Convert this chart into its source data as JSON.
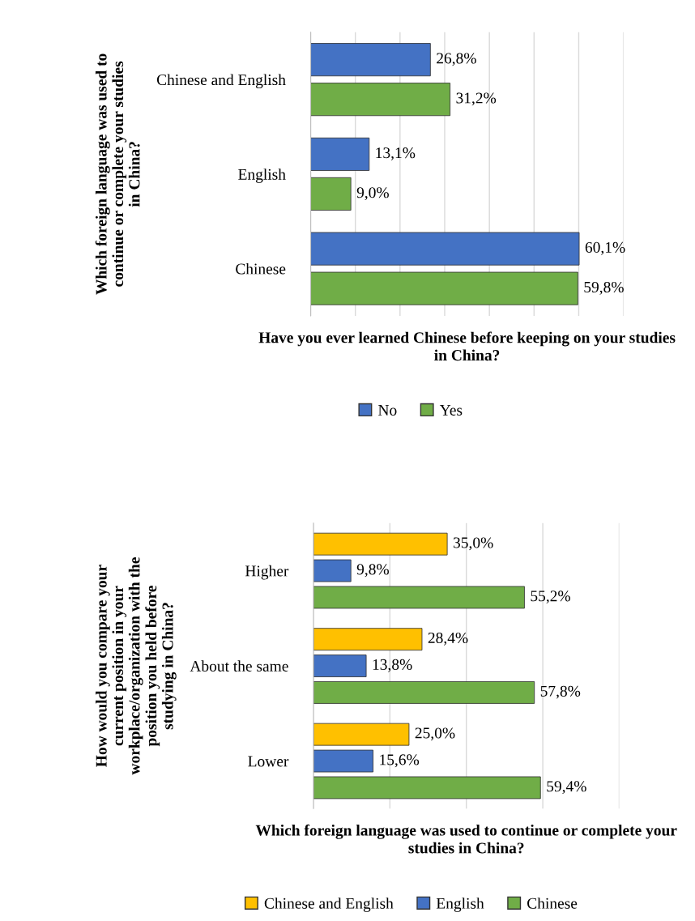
{
  "chart_data": [
    {
      "type": "bar",
      "orientation": "horizontal",
      "xlabel": "Have you ever learned Chinese before keeping on your studies in China?",
      "ylabel": "Which foreign language was used to continue or complete your studies in China?",
      "categories": [
        "Chinese and English",
        "English",
        "Chinese"
      ],
      "series": [
        {
          "name": "No",
          "color": "#4472c4",
          "values": [
            26.8,
            13.1,
            60.1
          ],
          "value_labels": [
            "26,8%",
            "13,1%",
            "60,1%"
          ]
        },
        {
          "name": "Yes",
          "color": "#70ad47",
          "values": [
            31.2,
            9.0,
            59.8
          ],
          "value_labels": [
            "31,2%",
            "9,0%",
            "59,8%"
          ]
        }
      ],
      "xlim": [
        0,
        70
      ],
      "xticks": [
        {
          "value": 0,
          "label": null
        },
        {
          "value": 10,
          "label": null
        },
        {
          "value": 20,
          "label": null
        },
        {
          "value": 30,
          "label": null
        },
        {
          "value": 40,
          "label": null
        },
        {
          "value": 50,
          "label": null
        },
        {
          "value": 60,
          "label": null
        },
        {
          "value": 70,
          "label": null
        }
      ],
      "tick_labels": "y",
      "grid": "x",
      "legend": "bottom"
    },
    {
      "type": "bar",
      "orientation": "horizontal",
      "xlabel": "Which foreign language was used to continue or complete your studies in China?",
      "ylabel": "How would you compare your current position in your workplace/organization with the position you held before studying in China?",
      "categories": [
        "Higher",
        "About the same",
        "Lower"
      ],
      "series": [
        {
          "name": "Chinese and English",
          "color": "#ffc000",
          "values": [
            35.0,
            28.4,
            25.0
          ],
          "value_labels": [
            "35,0%",
            "28,4%",
            "25,0%"
          ]
        },
        {
          "name": "English",
          "color": "#4472c4",
          "values": [
            9.8,
            13.8,
            15.6
          ],
          "value_labels": [
            "9,8%",
            "13,8%",
            "15,6%"
          ]
        },
        {
          "name": "Chinese",
          "color": "#70ad47",
          "values": [
            55.2,
            57.8,
            59.4
          ],
          "value_labels": [
            "55,2%",
            "57,8%",
            "59,4%"
          ]
        }
      ],
      "xlim": [
        0,
        80
      ],
      "xticks": [
        {
          "value": 0,
          "label": null
        },
        {
          "value": 20,
          "label": null
        },
        {
          "value": 40,
          "label": null
        },
        {
          "value": 60,
          "label": null
        },
        {
          "value": 80,
          "label": null
        }
      ],
      "tick_labels": "y",
      "grid": "x",
      "legend": "bottom"
    }
  ]
}
